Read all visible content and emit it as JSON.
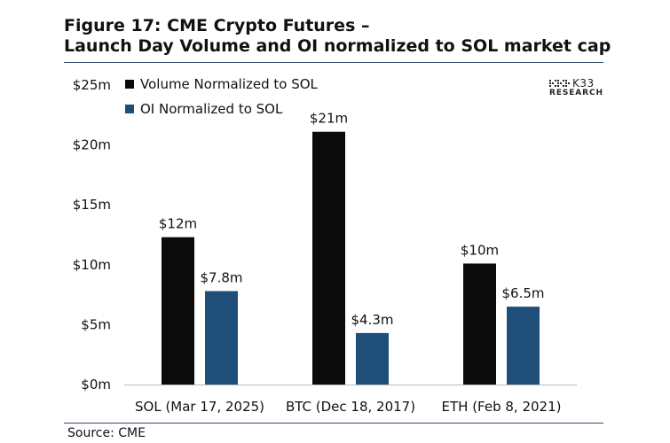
{
  "header": {
    "title_line1": "Figure 17: CME Crypto Futures –",
    "title_line2": "Launch Day Volume and OI normalized to SOL market cap"
  },
  "logo": {
    "name": "K33",
    "subtitle": "RESEARCH"
  },
  "footer": {
    "source": "Source: CME"
  },
  "colors": {
    "volume": "#0b0b0b",
    "oi": "#1f4e79",
    "axis": "#bbbbbb",
    "rule": "#2d4f6e"
  },
  "chart_data": {
    "type": "bar",
    "title": "Figure 17: CME Crypto Futures – Launch Day Volume and OI normalized to SOL market cap",
    "categories": [
      "SOL (Mar 17, 2025)",
      "BTC (Dec 18, 2017)",
      "ETH (Feb 8, 2021)"
    ],
    "series": [
      {
        "name": "Volume Normalized to SOL",
        "values": [
          12.3,
          21.1,
          10.1
        ],
        "labels": [
          "$12m",
          "$21m",
          "$10m"
        ],
        "color": "#0b0b0b"
      },
      {
        "name": "OI Normalized to SOL",
        "values": [
          7.8,
          4.3,
          6.5
        ],
        "labels": [
          "$7.8m",
          "$4.3m",
          "$6.5m"
        ],
        "color": "#1f4e79"
      }
    ],
    "yticks": [
      0,
      5,
      10,
      15,
      20,
      25
    ],
    "ytick_labels": [
      "$0m",
      "$5m",
      "$10m",
      "$15m",
      "$20m",
      "$25m"
    ],
    "ylim": [
      0,
      25
    ],
    "xlabel": "",
    "ylabel": "",
    "grid": false,
    "legend": "top-left"
  }
}
